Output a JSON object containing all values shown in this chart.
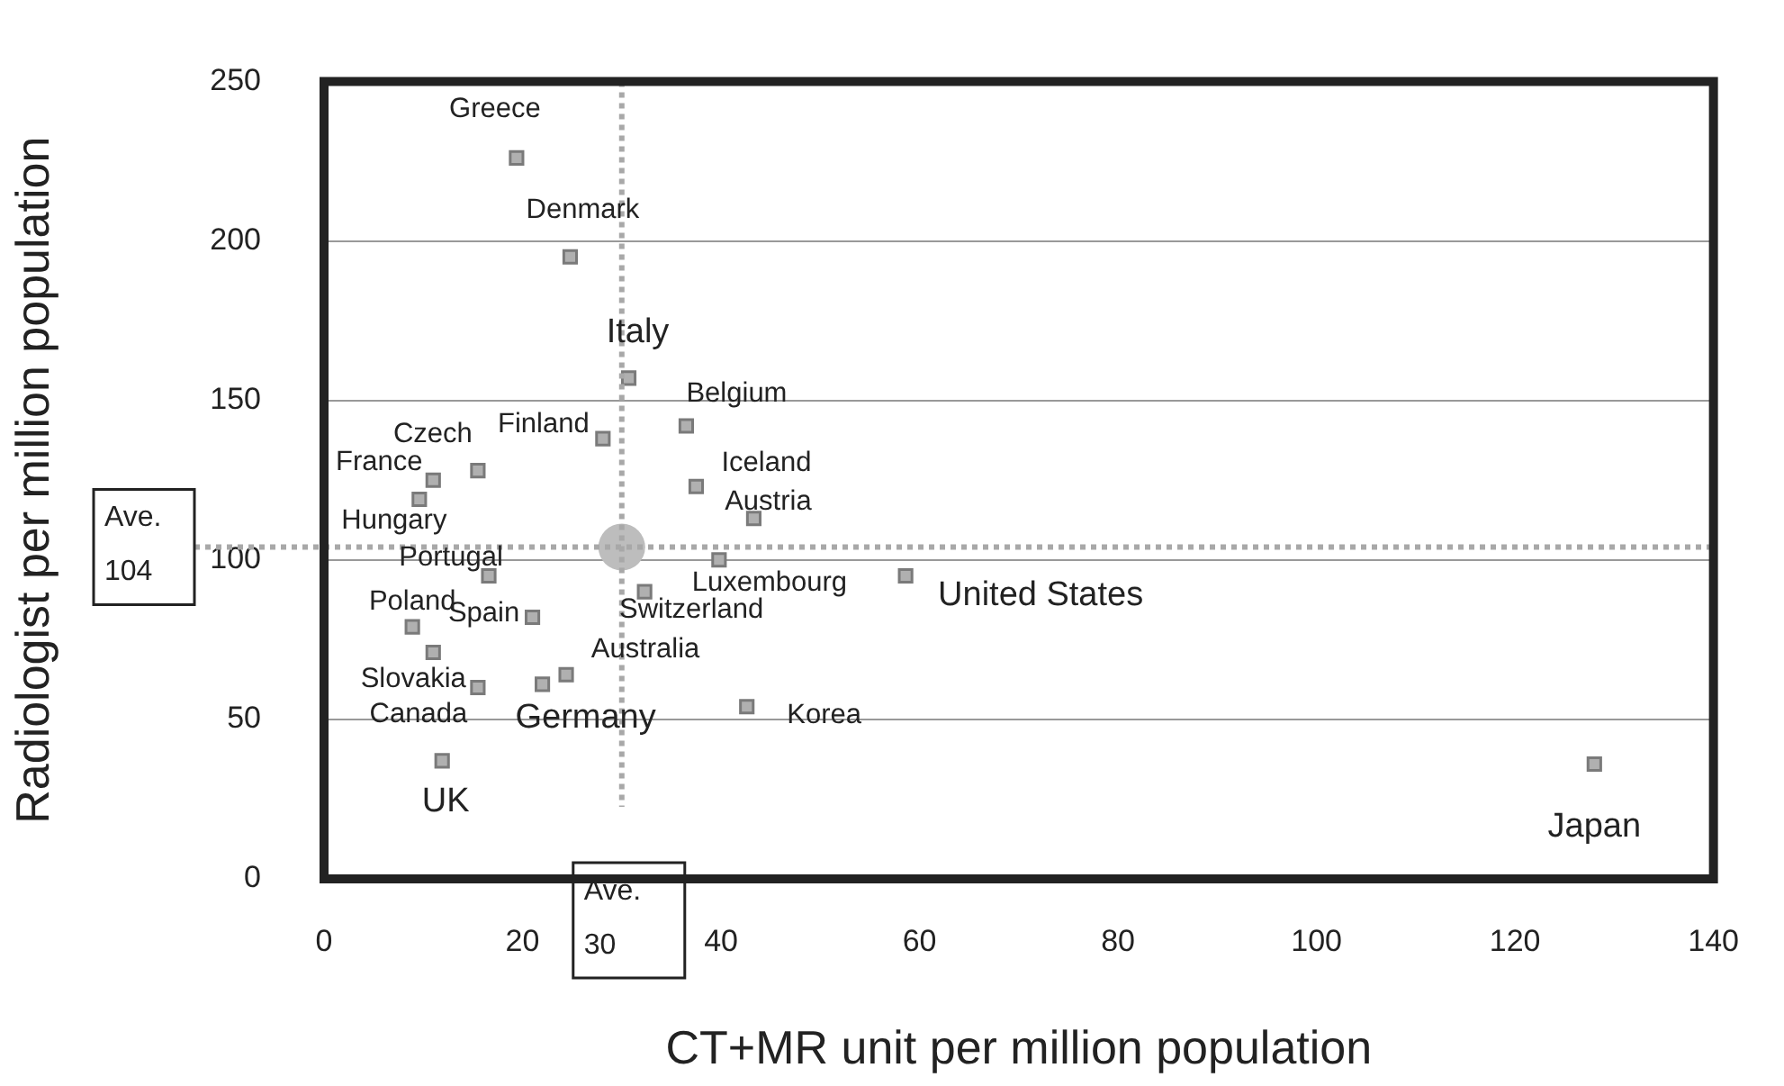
{
  "chart_data": {
    "type": "scatter",
    "xlabel": "CT+MR unit per million population",
    "ylabel": "Radiologist per million population",
    "xlim": [
      0,
      140
    ],
    "xticks": [
      0,
      20,
      40,
      60,
      80,
      100,
      120,
      140
    ],
    "ylim": [
      0,
      250
    ],
    "yticks": [
      0,
      50,
      100,
      150,
      200,
      250
    ],
    "grid": "y",
    "legend": false,
    "marker": "square",
    "series": [
      {
        "color": "#b0b0b0",
        "x": [
          19.4,
          24.8,
          30.7,
          36.5,
          28.1,
          15.5,
          11,
          37.5,
          9.6,
          43.3,
          39.8,
          58.6,
          16.6,
          32.3,
          21,
          8.9,
          11,
          24.4,
          22,
          15.5,
          42.6,
          11.9,
          128
        ],
        "values": [
          226,
          195,
          157,
          142,
          138,
          128,
          125,
          123,
          119,
          113,
          100,
          95,
          95,
          90,
          82,
          79,
          71,
          64,
          61,
          60,
          54,
          37,
          36
        ]
      },
      {
        "type": "scatter",
        "marker": "circle",
        "color": "#bdbdbd",
        "x": [
          30
        ],
        "values": [
          104
        ]
      }
    ],
    "ref_lines": [
      {
        "axis": "x",
        "value": 30,
        "label": "Ave.\n30",
        "color": "#a8a8a8",
        "line_style": "dotted"
      },
      {
        "axis": "y",
        "value": 104,
        "label": "Ave.\n104",
        "color": "#a8a8a8",
        "line_style": "dotted"
      }
    ],
    "annotations": [
      {
        "text": "Greece",
        "x": 19.4,
        "y": 226
      },
      {
        "text": "Denmark",
        "x": 24.8,
        "y": 195
      },
      {
        "text": "Italy",
        "x": 30.7,
        "y": 157
      },
      {
        "text": "Belgium",
        "x": 36.5,
        "y": 142
      },
      {
        "text": "Finland",
        "x": 28.1,
        "y": 138
      },
      {
        "text": "Czech",
        "x": 15.5,
        "y": 128
      },
      {
        "text": "France",
        "x": 11,
        "y": 125
      },
      {
        "text": "Iceland",
        "x": 37.5,
        "y": 123
      },
      {
        "text": "Hungary",
        "x": 9.6,
        "y": 119
      },
      {
        "text": "Austria",
        "x": 43.3,
        "y": 113
      },
      {
        "text": "Luxembourg",
        "x": 39.8,
        "y": 100
      },
      {
        "text": "United States",
        "x": 58.6,
        "y": 95
      },
      {
        "text": "Portugal",
        "x": 16.6,
        "y": 95
      },
      {
        "text": "Switzerland",
        "x": 32.3,
        "y": 90
      },
      {
        "text": "Spain",
        "x": 21,
        "y": 82
      },
      {
        "text": "Poland",
        "x": 8.9,
        "y": 79
      },
      {
        "text": "Slovakia",
        "x": 11,
        "y": 71
      },
      {
        "text": "Australia",
        "x": 24.4,
        "y": 64
      },
      {
        "text": "Germany",
        "x": 22,
        "y": 61
      },
      {
        "text": "Canada",
        "x": 15.5,
        "y": 60
      },
      {
        "text": "Korea",
        "x": 42.6,
        "y": 54
      },
      {
        "text": "UK",
        "x": 11.9,
        "y": 37
      },
      {
        "text": "Japan",
        "x": 128,
        "y": 36
      }
    ]
  }
}
